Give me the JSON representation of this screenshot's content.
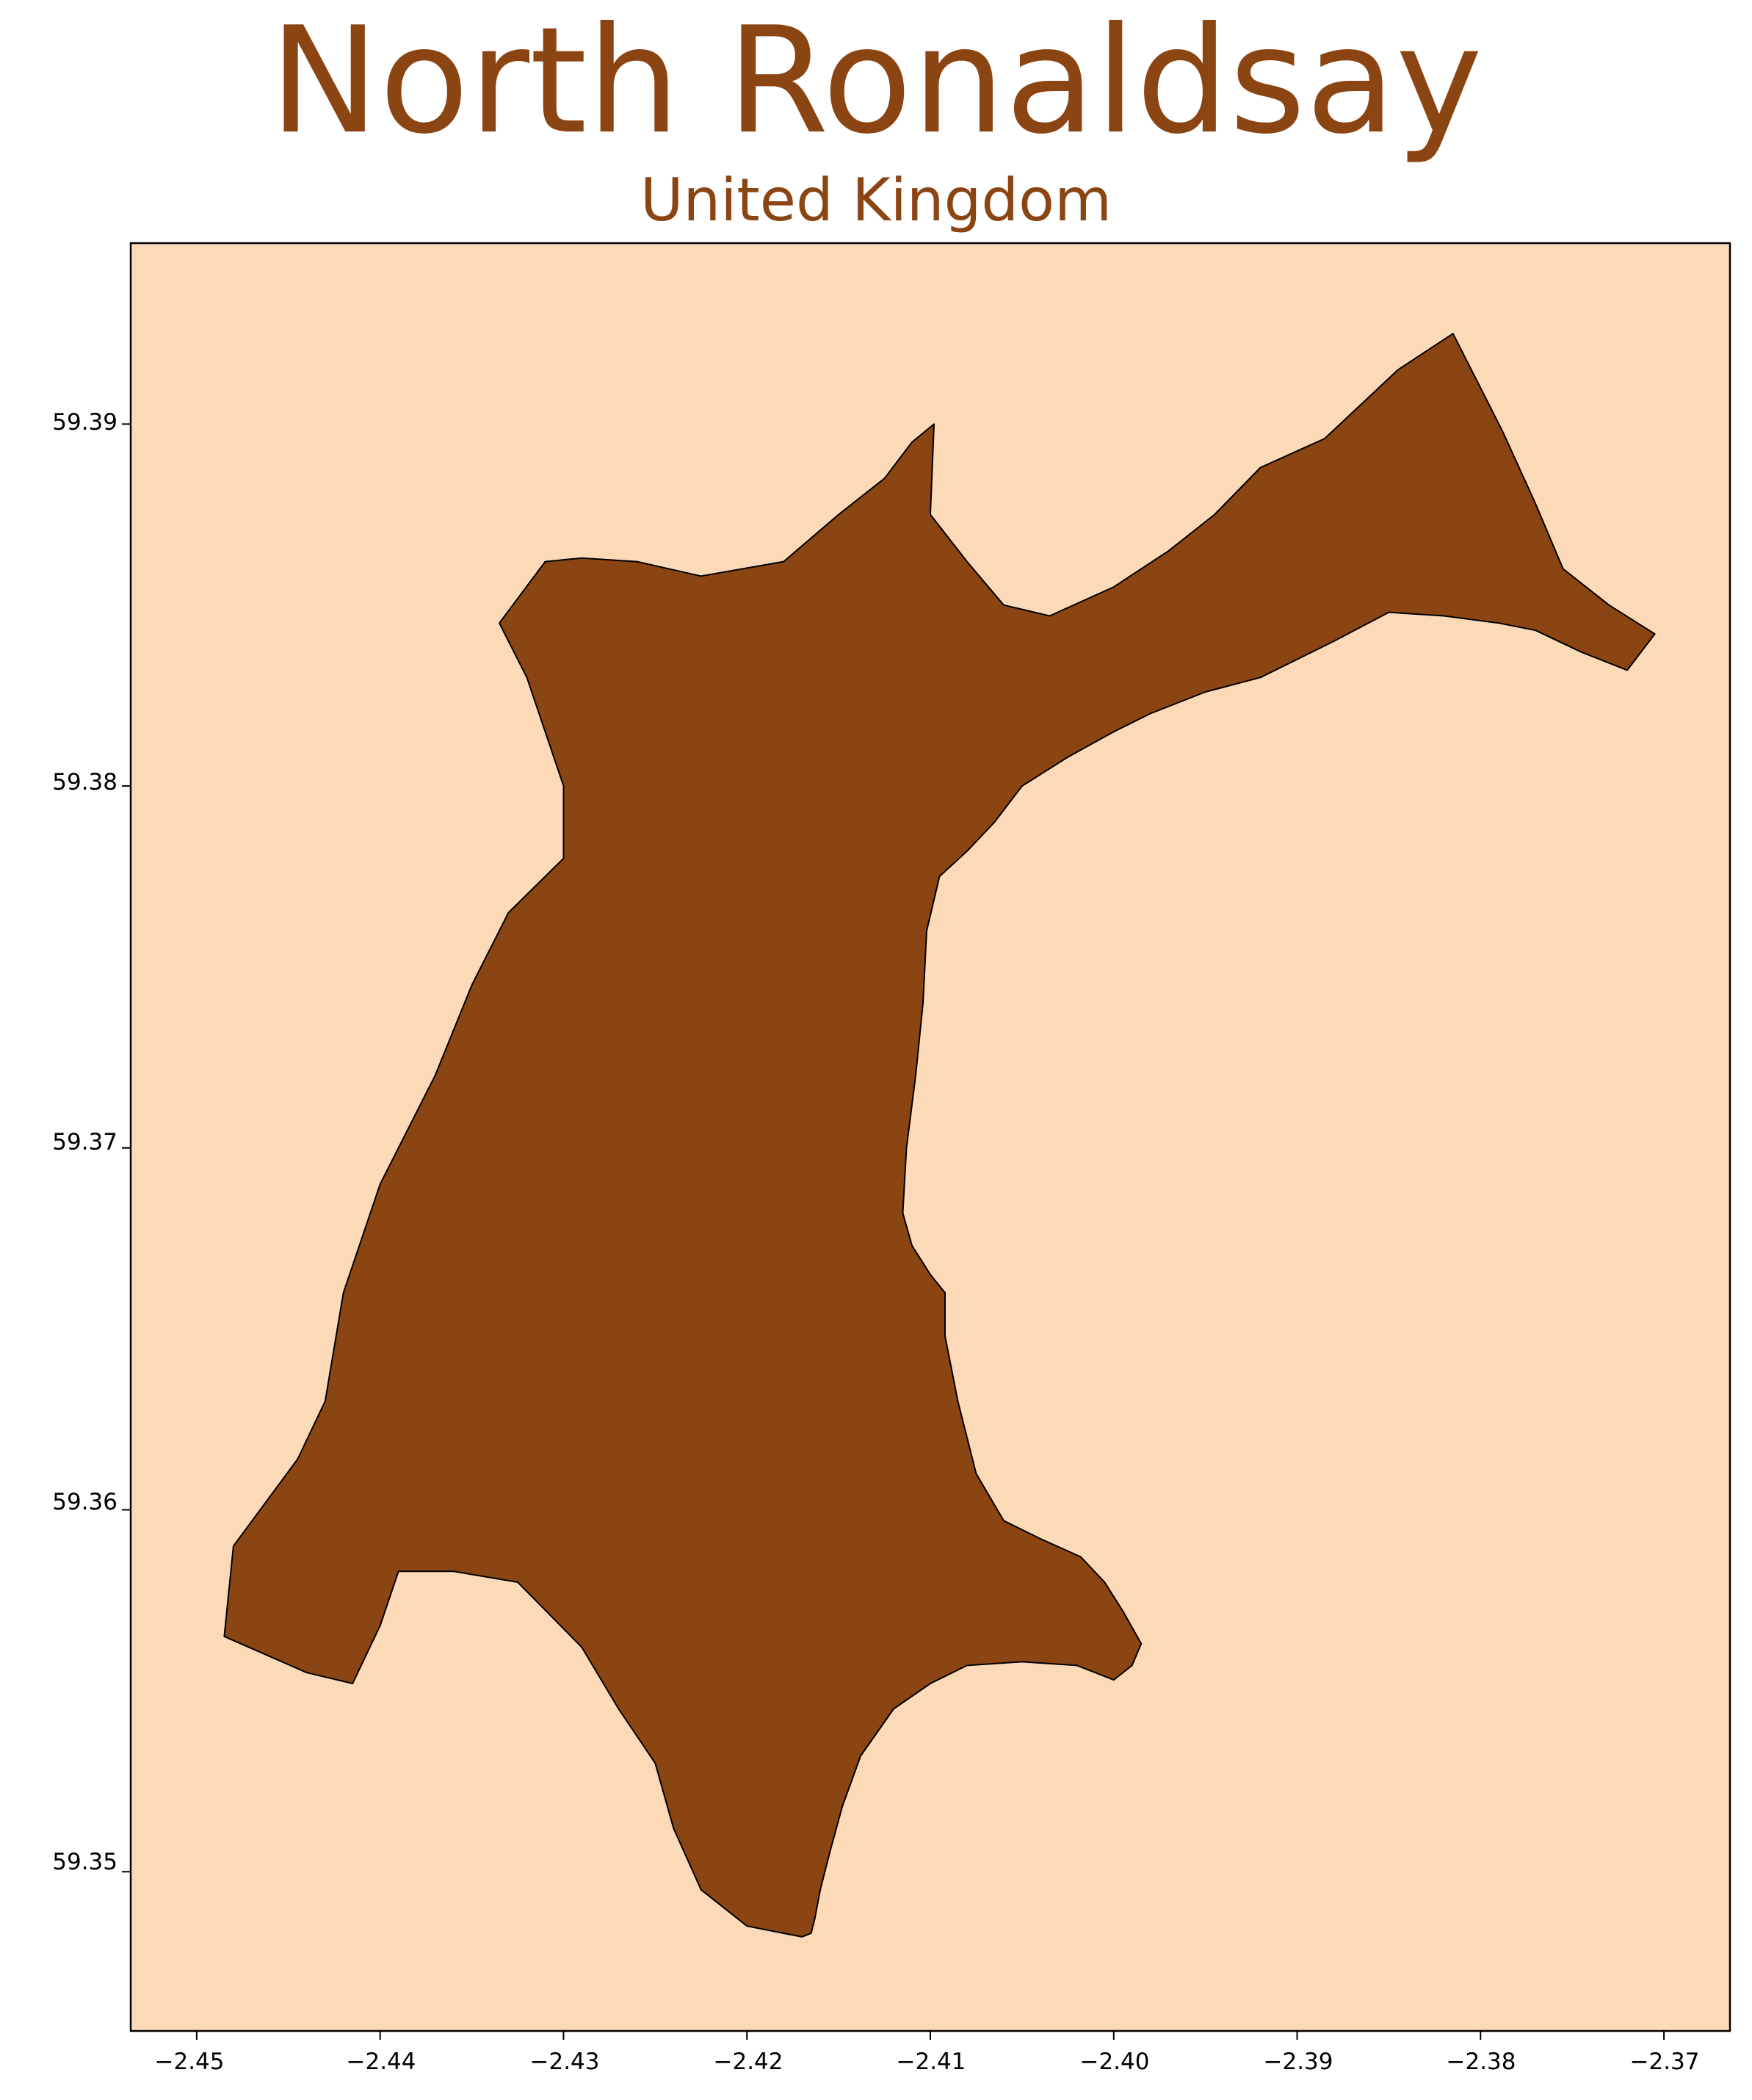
{
  "map": {
    "title": "North Ronaldsay",
    "subtitle": "United Kingdom",
    "colors": {
      "water": "#FCDAB8",
      "land": "#8B4513",
      "outline": "#000000",
      "title": "#8B4513"
    },
    "x_ticks": [
      "−2.45",
      "−2.44",
      "−2.43",
      "−2.42",
      "−2.41",
      "−2.40",
      "−2.39",
      "−2.38",
      "−2.37"
    ],
    "y_ticks": [
      "59.39",
      "59.38",
      "59.37",
      "59.36",
      "59.35"
    ]
  },
  "chart_data": {
    "type": "map",
    "region": "North Ronaldsay",
    "country": "United Kingdom",
    "xlim": [
      -2.4536,
      -2.3664
    ],
    "ylim": [
      59.3456,
      59.395
    ],
    "x_ticks": [
      -2.45,
      -2.44,
      -2.43,
      -2.42,
      -2.41,
      -2.4,
      -2.39,
      -2.38,
      -2.37
    ],
    "y_ticks": [
      59.35,
      59.36,
      59.37,
      59.38,
      59.39
    ],
    "outline_lonlat": [
      [
        -2.418,
        59.3483
      ],
      [
        -2.417,
        59.3482
      ],
      [
        -2.4165,
        59.3483
      ],
      [
        -2.4163,
        59.3487
      ],
      [
        -2.416,
        59.3495
      ],
      [
        -2.4155,
        59.3505
      ],
      [
        -2.4148,
        59.3518
      ],
      [
        -2.4138,
        59.3532
      ],
      [
        -2.412,
        59.3545
      ],
      [
        -2.41,
        59.3552
      ],
      [
        -2.408,
        59.3557
      ],
      [
        -2.405,
        59.3558
      ],
      [
        -2.402,
        59.3557
      ],
      [
        -2.4,
        59.3553
      ],
      [
        -2.399,
        59.3557
      ],
      [
        -2.3985,
        59.3563
      ],
      [
        -2.3995,
        59.3572
      ],
      [
        -2.4005,
        59.358
      ],
      [
        -2.4018,
        59.3587
      ],
      [
        -2.404,
        59.3592
      ],
      [
        -2.406,
        59.3597
      ],
      [
        -2.4075,
        59.361
      ],
      [
        -2.4085,
        59.363
      ],
      [
        -2.4092,
        59.3648
      ],
      [
        -2.4092,
        59.366
      ],
      [
        -2.41,
        59.3665
      ],
      [
        -2.411,
        59.3673
      ],
      [
        -2.4115,
        59.3682
      ],
      [
        -2.4113,
        59.37
      ],
      [
        -2.4108,
        59.372
      ],
      [
        -2.4104,
        59.374
      ],
      [
        -2.4102,
        59.376
      ],
      [
        -2.4095,
        59.3775
      ],
      [
        -2.408,
        59.3782
      ],
      [
        -2.4065,
        59.379
      ],
      [
        -2.405,
        59.38
      ],
      [
        -2.4025,
        59.3808
      ],
      [
        -2.4,
        59.3815
      ],
      [
        -2.398,
        59.382
      ],
      [
        -2.395,
        59.3826
      ],
      [
        -2.392,
        59.383
      ],
      [
        -2.388,
        59.384
      ],
      [
        -2.385,
        59.3848
      ],
      [
        -2.382,
        59.3847
      ],
      [
        -2.379,
        59.3845
      ],
      [
        -2.377,
        59.3843
      ],
      [
        -2.3745,
        59.3837
      ],
      [
        -2.372,
        59.3832
      ],
      [
        -2.3705,
        59.3842
      ],
      [
        -2.373,
        59.385
      ],
      [
        -2.3755,
        59.386
      ],
      [
        -2.377,
        59.3878
      ],
      [
        -2.3788,
        59.3898
      ],
      [
        -2.38,
        59.391
      ],
      [
        -2.3815,
        59.3925
      ],
      [
        -2.3845,
        59.3915
      ],
      [
        -2.3885,
        59.3896
      ],
      [
        -2.392,
        59.3888
      ],
      [
        -2.3945,
        59.3875
      ],
      [
        -2.397,
        59.3865
      ],
      [
        -2.4,
        59.3855
      ],
      [
        -2.4035,
        59.3847
      ],
      [
        -2.406,
        59.385
      ],
      [
        -2.408,
        59.3862
      ],
      [
        -2.41,
        59.3875
      ],
      [
        -2.4098,
        59.39
      ],
      [
        -2.411,
        59.3895
      ],
      [
        -2.4125,
        59.3885
      ],
      [
        -2.415,
        59.3875
      ],
      [
        -2.418,
        59.3862
      ],
      [
        -2.4225,
        59.3858
      ],
      [
        -2.426,
        59.3862
      ],
      [
        -2.429,
        59.3863
      ],
      [
        -2.431,
        59.3862
      ],
      [
        -2.4335,
        59.3845
      ],
      [
        -2.432,
        59.383
      ],
      [
        -2.43,
        59.38
      ],
      [
        -2.43,
        59.378
      ],
      [
        -2.433,
        59.3765
      ],
      [
        -2.435,
        59.3745
      ],
      [
        -2.437,
        59.372
      ],
      [
        -2.44,
        59.369
      ],
      [
        -2.442,
        59.366
      ],
      [
        -2.443,
        59.363
      ],
      [
        -2.4445,
        59.3614
      ],
      [
        -2.448,
        59.359
      ],
      [
        -2.4485,
        59.3565
      ],
      [
        -2.444,
        59.3555
      ],
      [
        -2.4415,
        59.3552
      ],
      [
        -2.44,
        59.3568
      ],
      [
        -2.439,
        59.3583
      ],
      [
        -2.436,
        59.3583
      ],
      [
        -2.4325,
        59.358
      ],
      [
        -2.429,
        59.3562
      ],
      [
        -2.427,
        59.3545
      ],
      [
        -2.425,
        59.353
      ],
      [
        -2.424,
        59.3512
      ],
      [
        -2.4225,
        59.3495
      ],
      [
        -2.42,
        59.3485
      ]
    ]
  }
}
